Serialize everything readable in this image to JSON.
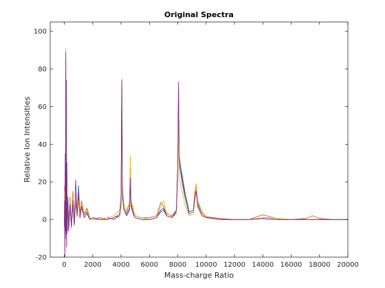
{
  "chart_data": {
    "type": "line",
    "title": "Original Spectra",
    "xlabel": "Mass-charge Ratio",
    "ylabel": "Relative Ion Intensities",
    "xlim": [
      -1000,
      20000
    ],
    "ylim": [
      -20,
      105
    ],
    "xticks": [
      0,
      2000,
      4000,
      6000,
      8000,
      10000,
      12000,
      14000,
      16000,
      18000,
      20000
    ],
    "yticks": [
      -20,
      0,
      20,
      40,
      60,
      80,
      100
    ],
    "grid": false,
    "series": [
      {
        "color": "#0072BD",
        "points": [
          [
            0,
            -2
          ],
          [
            20,
            12
          ],
          [
            40,
            -15
          ],
          [
            60,
            30
          ],
          [
            80,
            -8
          ],
          [
            100,
            68
          ],
          [
            120,
            -6
          ],
          [
            140,
            45
          ],
          [
            160,
            -12
          ],
          [
            180,
            25
          ],
          [
            200,
            -5
          ],
          [
            250,
            10
          ],
          [
            300,
            -6
          ],
          [
            400,
            6
          ],
          [
            500,
            -4
          ],
          [
            600,
            8
          ],
          [
            700,
            -3
          ],
          [
            800,
            10
          ],
          [
            900,
            2
          ],
          [
            1000,
            18
          ],
          [
            1100,
            1
          ],
          [
            1200,
            6
          ],
          [
            1400,
            2
          ],
          [
            1600,
            4
          ],
          [
            1800,
            0
          ],
          [
            2000,
            1
          ],
          [
            2500,
            0
          ],
          [
            3000,
            1
          ],
          [
            3500,
            0
          ],
          [
            3900,
            2
          ],
          [
            4000,
            10
          ],
          [
            4050,
            71
          ],
          [
            4100,
            12
          ],
          [
            4200,
            5
          ],
          [
            4400,
            3
          ],
          [
            4600,
            6
          ],
          [
            4650,
            26
          ],
          [
            4700,
            8
          ],
          [
            4900,
            2
          ],
          [
            5000,
            1
          ],
          [
            5500,
            0
          ],
          [
            6000,
            0
          ],
          [
            6500,
            1
          ],
          [
            6800,
            5
          ],
          [
            7000,
            6
          ],
          [
            7200,
            2
          ],
          [
            7600,
            1
          ],
          [
            7900,
            4
          ],
          [
            8000,
            25
          ],
          [
            8050,
            70
          ],
          [
            8100,
            30
          ],
          [
            8300,
            20
          ],
          [
            8500,
            12
          ],
          [
            8800,
            3
          ],
          [
            9100,
            4
          ],
          [
            9200,
            12
          ],
          [
            9300,
            18
          ],
          [
            9400,
            8
          ],
          [
            9700,
            3
          ],
          [
            10000,
            1
          ],
          [
            11000,
            0
          ],
          [
            12000,
            0
          ],
          [
            13000,
            0
          ],
          [
            14000,
            0.5
          ],
          [
            15000,
            0
          ],
          [
            16000,
            0
          ],
          [
            17000,
            0
          ],
          [
            18000,
            0
          ],
          [
            19000,
            0
          ],
          [
            20000,
            0
          ]
        ]
      },
      {
        "color": "#D95319",
        "points": [
          [
            0,
            -1
          ],
          [
            20,
            18
          ],
          [
            40,
            -18
          ],
          [
            60,
            25
          ],
          [
            80,
            -10
          ],
          [
            100,
            85
          ],
          [
            120,
            -5
          ],
          [
            140,
            40
          ],
          [
            160,
            -15
          ],
          [
            180,
            20
          ],
          [
            200,
            -4
          ],
          [
            250,
            8
          ],
          [
            300,
            -5
          ],
          [
            400,
            12
          ],
          [
            500,
            -3
          ],
          [
            600,
            15
          ],
          [
            700,
            -2
          ],
          [
            800,
            8
          ],
          [
            900,
            3
          ],
          [
            1000,
            12
          ],
          [
            1100,
            2
          ],
          [
            1200,
            10
          ],
          [
            1400,
            3
          ],
          [
            1600,
            6
          ],
          [
            1800,
            1
          ],
          [
            2000,
            0
          ],
          [
            2500,
            1
          ],
          [
            3000,
            0
          ],
          [
            3500,
            1
          ],
          [
            3900,
            3
          ],
          [
            4000,
            12
          ],
          [
            4050,
            73
          ],
          [
            4100,
            15
          ],
          [
            4200,
            6
          ],
          [
            4400,
            4
          ],
          [
            4600,
            8
          ],
          [
            4650,
            30
          ],
          [
            4700,
            9
          ],
          [
            4900,
            3
          ],
          [
            5000,
            2
          ],
          [
            5500,
            1
          ],
          [
            6000,
            1
          ],
          [
            6500,
            2
          ],
          [
            6800,
            9
          ],
          [
            7000,
            7
          ],
          [
            7200,
            3
          ],
          [
            7600,
            2
          ],
          [
            7900,
            5
          ],
          [
            8000,
            28
          ],
          [
            8050,
            68
          ],
          [
            8100,
            32
          ],
          [
            8300,
            24
          ],
          [
            8500,
            15
          ],
          [
            8800,
            4
          ],
          [
            9100,
            5
          ],
          [
            9200,
            14
          ],
          [
            9300,
            19
          ],
          [
            9400,
            10
          ],
          [
            9700,
            4
          ],
          [
            10000,
            1.5
          ],
          [
            11000,
            0.5
          ],
          [
            12000,
            0
          ],
          [
            13000,
            0
          ],
          [
            14000,
            2.5
          ],
          [
            14500,
            1.5
          ],
          [
            15000,
            0.5
          ],
          [
            16000,
            0
          ],
          [
            17000,
            0.5
          ],
          [
            17500,
            2
          ],
          [
            18000,
            0.5
          ],
          [
            19000,
            0
          ],
          [
            20000,
            0
          ]
        ]
      },
      {
        "color": "#EDB120",
        "points": [
          [
            0,
            -3
          ],
          [
            20,
            15
          ],
          [
            40,
            -12
          ],
          [
            60,
            28
          ],
          [
            80,
            -9
          ],
          [
            100,
            91
          ],
          [
            120,
            -7
          ],
          [
            140,
            38
          ],
          [
            160,
            -10
          ],
          [
            180,
            22
          ],
          [
            200,
            -6
          ],
          [
            250,
            9
          ],
          [
            300,
            -4
          ],
          [
            400,
            10
          ],
          [
            500,
            -5
          ],
          [
            600,
            12
          ],
          [
            700,
            -2
          ],
          [
            800,
            14
          ],
          [
            900,
            1
          ],
          [
            1000,
            10
          ],
          [
            1100,
            3
          ],
          [
            1200,
            8
          ],
          [
            1400,
            2
          ],
          [
            1600,
            5
          ],
          [
            1800,
            1
          ],
          [
            2000,
            0
          ],
          [
            2500,
            0
          ],
          [
            3000,
            1
          ],
          [
            3500,
            2
          ],
          [
            3900,
            5
          ],
          [
            4000,
            14
          ],
          [
            4050,
            75
          ],
          [
            4100,
            18
          ],
          [
            4200,
            8
          ],
          [
            4400,
            5
          ],
          [
            4600,
            10
          ],
          [
            4650,
            34
          ],
          [
            4700,
            11
          ],
          [
            4900,
            4
          ],
          [
            5000,
            2
          ],
          [
            5500,
            1
          ],
          [
            6000,
            0
          ],
          [
            6500,
            1
          ],
          [
            6800,
            7
          ],
          [
            7000,
            10
          ],
          [
            7200,
            4
          ],
          [
            7600,
            1
          ],
          [
            7900,
            3
          ],
          [
            8000,
            20
          ],
          [
            8050,
            60
          ],
          [
            8100,
            22
          ],
          [
            8300,
            15
          ],
          [
            8500,
            8
          ],
          [
            8800,
            2
          ],
          [
            9100,
            3
          ],
          [
            9200,
            10
          ],
          [
            9300,
            19
          ],
          [
            9400,
            9
          ],
          [
            9700,
            3
          ],
          [
            10000,
            1
          ],
          [
            11000,
            0
          ],
          [
            12000,
            0
          ],
          [
            13000,
            0
          ],
          [
            14000,
            1
          ],
          [
            14500,
            1
          ],
          [
            15000,
            0.5
          ],
          [
            16000,
            0
          ],
          [
            17000,
            0
          ],
          [
            18000,
            0
          ],
          [
            19000,
            0
          ],
          [
            20000,
            0
          ]
        ]
      },
      {
        "color": "#7E2F8E",
        "points": [
          [
            0,
            -4
          ],
          [
            20,
            10
          ],
          [
            40,
            -20
          ],
          [
            60,
            35
          ],
          [
            80,
            -6
          ],
          [
            100,
            89
          ],
          [
            120,
            -8
          ],
          [
            140,
            74
          ],
          [
            160,
            -14
          ],
          [
            180,
            30
          ],
          [
            200,
            -7
          ],
          [
            250,
            12
          ],
          [
            300,
            -6
          ],
          [
            400,
            8
          ],
          [
            500,
            -4
          ],
          [
            600,
            10
          ],
          [
            700,
            -3
          ],
          [
            800,
            21
          ],
          [
            900,
            2
          ],
          [
            1000,
            15
          ],
          [
            1100,
            1
          ],
          [
            1200,
            7
          ],
          [
            1400,
            1
          ],
          [
            1600,
            3
          ],
          [
            1800,
            0
          ],
          [
            2000,
            1
          ],
          [
            2500,
            0
          ],
          [
            3000,
            0
          ],
          [
            3500,
            1
          ],
          [
            3900,
            2
          ],
          [
            4000,
            8
          ],
          [
            4050,
            74
          ],
          [
            4100,
            14
          ],
          [
            4200,
            5
          ],
          [
            4400,
            2
          ],
          [
            4600,
            5
          ],
          [
            4650,
            22
          ],
          [
            4700,
            7
          ],
          [
            4900,
            2
          ],
          [
            5000,
            1
          ],
          [
            5500,
            0
          ],
          [
            6000,
            0
          ],
          [
            6500,
            1
          ],
          [
            6800,
            4
          ],
          [
            7000,
            5
          ],
          [
            7200,
            2
          ],
          [
            7600,
            1
          ],
          [
            7900,
            5
          ],
          [
            8000,
            30
          ],
          [
            8050,
            73
          ],
          [
            8100,
            34
          ],
          [
            8300,
            22
          ],
          [
            8500,
            14
          ],
          [
            8800,
            4
          ],
          [
            9100,
            5
          ],
          [
            9200,
            11
          ],
          [
            9300,
            15
          ],
          [
            9400,
            7
          ],
          [
            9700,
            2
          ],
          [
            10000,
            1
          ],
          [
            11000,
            0
          ],
          [
            12000,
            0
          ],
          [
            13000,
            0
          ],
          [
            14000,
            0.5
          ],
          [
            15000,
            0
          ],
          [
            16000,
            0
          ],
          [
            17000,
            0
          ],
          [
            18000,
            0
          ],
          [
            19000,
            0
          ],
          [
            20000,
            0
          ]
        ]
      }
    ]
  }
}
